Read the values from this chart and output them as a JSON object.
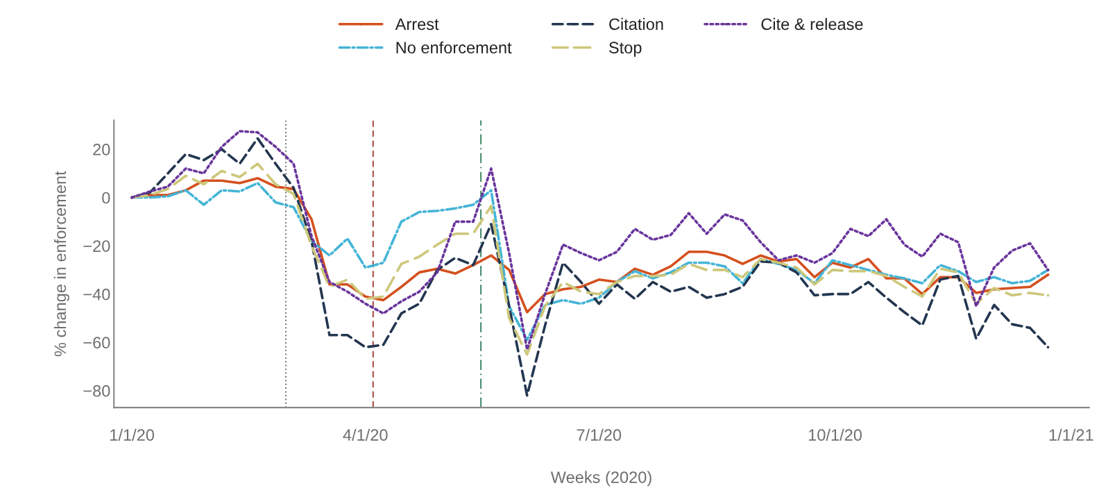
{
  "chart_data": {
    "type": "line",
    "xlabel": "Weeks (2020)",
    "ylabel": "% change in enforcement",
    "x": [
      "2020-01-01",
      "2020-01-08",
      "2020-01-15",
      "2020-01-22",
      "2020-01-29",
      "2020-02-05",
      "2020-02-12",
      "2020-02-19",
      "2020-02-26",
      "2020-03-04",
      "2020-03-11",
      "2020-03-18",
      "2020-03-25",
      "2020-04-01",
      "2020-04-08",
      "2020-04-15",
      "2020-04-22",
      "2020-04-29",
      "2020-05-06",
      "2020-05-13",
      "2020-05-20",
      "2020-05-27",
      "2020-06-03",
      "2020-06-10",
      "2020-06-17",
      "2020-06-24",
      "2020-07-01",
      "2020-07-08",
      "2020-07-15",
      "2020-07-22",
      "2020-07-29",
      "2020-08-05",
      "2020-08-12",
      "2020-08-19",
      "2020-08-26",
      "2020-09-02",
      "2020-09-09",
      "2020-09-16",
      "2020-09-23",
      "2020-09-30",
      "2020-10-07",
      "2020-10-14",
      "2020-10-21",
      "2020-10-28",
      "2020-11-04",
      "2020-11-11",
      "2020-11-18",
      "2020-11-25",
      "2020-12-02",
      "2020-12-09",
      "2020-12-16",
      "2020-12-23"
    ],
    "series": [
      {
        "name": "Arrest",
        "color": "#d4501e",
        "line_style": "solid",
        "values": [
          0,
          1,
          1,
          3,
          7,
          7,
          6,
          8,
          4.5,
          3.5,
          -9,
          -36,
          -36,
          -41,
          -42.5,
          -37,
          -31,
          -29.5,
          -31.5,
          -28,
          -24,
          -30,
          -47.5,
          -40,
          -38,
          -37,
          -34,
          -35,
          -29.5,
          -32,
          -28.5,
          -22.5,
          -22.5,
          -24,
          -27.5,
          -24,
          -26.5,
          -25.5,
          -33,
          -27,
          -29,
          -25.5,
          -33.5,
          -33.5,
          -40,
          -33,
          -33,
          -39.5,
          -38,
          -37.5,
          -37,
          -32
        ]
      },
      {
        "name": "No enforcement",
        "color": "#44b4d6",
        "line_style": "dashdot",
        "values": [
          0,
          0,
          0.5,
          3,
          -3,
          3,
          2.5,
          6,
          -2,
          -4,
          -18,
          -24,
          -17,
          -29,
          -27,
          -10,
          -6,
          -5.5,
          -4.5,
          -3,
          3,
          -45,
          -59,
          -44.5,
          -42.5,
          -44,
          -41.5,
          -35,
          -30.5,
          -33.5,
          -31,
          -27,
          -27,
          -28.5,
          -35.5,
          -25.5,
          -27.5,
          -30,
          -35.5,
          -26,
          -28,
          -30,
          -32,
          -33.5,
          -35.5,
          -28,
          -30.5,
          -35,
          -33,
          -35.5,
          -34.5,
          -30
        ]
      },
      {
        "name": "Citation",
        "color": "#233650",
        "line_style": "dashed",
        "values": [
          0,
          2,
          10,
          18,
          15.5,
          20,
          14,
          24.5,
          14,
          4,
          -18,
          -57,
          -57,
          -62,
          -61,
          -48,
          -44,
          -30,
          -25,
          -28,
          -11,
          -45,
          -82,
          -53,
          -27,
          -35,
          -44,
          -36,
          -42,
          -35,
          -39,
          -37,
          -41.5,
          -40,
          -37,
          -26.5,
          -27,
          -31,
          -40.5,
          -40,
          -40,
          -35,
          -41.5,
          -47.5,
          -53,
          -34,
          -32.5,
          -58.5,
          -44.5,
          -52.5,
          -54,
          -62
        ]
      },
      {
        "name": "Stop",
        "color": "#cdc77a",
        "line_style": "longdash",
        "values": [
          0,
          1,
          3.5,
          9,
          5.5,
          11,
          8.5,
          14,
          5.5,
          1.5,
          -20,
          -37,
          -34,
          -42,
          -41,
          -27.5,
          -24.5,
          -19.5,
          -15,
          -15,
          -3.5,
          -50,
          -65,
          -45,
          -35,
          -39,
          -40,
          -35,
          -32.5,
          -32.5,
          -32,
          -27.5,
          -30,
          -30,
          -33,
          -25.5,
          -27,
          -29,
          -36,
          -30,
          -30.5,
          -30.5,
          -32.5,
          -37,
          -41,
          -29.5,
          -31,
          -44,
          -37.5,
          -40.5,
          -39.5,
          -40.5
        ]
      },
      {
        "name": "Cite & release",
        "color": "#6a359c",
        "line_style": "dotted",
        "values": [
          0,
          2.5,
          4.5,
          12,
          10,
          21,
          27.5,
          27,
          21,
          14,
          -16,
          -35,
          -39,
          -44,
          -48,
          -43,
          -39,
          -31,
          -10,
          -10,
          12,
          -23,
          -63,
          -40,
          -19.5,
          -23,
          -26,
          -22.5,
          -13,
          -17.5,
          -15.5,
          -6.5,
          -15,
          -7,
          -9.5,
          -18.5,
          -26,
          -24,
          -27,
          -23,
          -13,
          -16,
          -9,
          -19.5,
          -24.5,
          -15,
          -18.5,
          -45,
          -29,
          -22,
          -19,
          -30
        ]
      }
    ],
    "ref_lines": [
      {
        "axis": "x",
        "value": "2020-03-01",
        "color": "#555555",
        "line_style": "dotted"
      },
      {
        "axis": "x",
        "value": "2020-04-04",
        "color": "#a0342d",
        "line_style": "dashed"
      },
      {
        "axis": "x",
        "value": "2020-05-16",
        "color": "#2e7d5a",
        "line_style": "dashdot"
      }
    ],
    "xlim": [
      "2019-12-25",
      "2021-01-08"
    ],
    "xticks": [
      {
        "value": "2020-01-01",
        "label": "1/1/20"
      },
      {
        "value": "2020-04-01",
        "label": "4/1/20"
      },
      {
        "value": "2020-07-01",
        "label": "7/1/20"
      },
      {
        "value": "2020-10-01",
        "label": "10/1/20"
      },
      {
        "value": "2021-01-01",
        "label": "1/1/21"
      }
    ],
    "ylim": [
      -87,
      32
    ],
    "yticks": [
      {
        "value": 20,
        "label": "20"
      },
      {
        "value": 0,
        "label": "0"
      },
      {
        "value": -20,
        "label": "−20"
      },
      {
        "value": -40,
        "label": "−40"
      },
      {
        "value": -60,
        "label": "−60"
      },
      {
        "value": -80,
        "label": "−80"
      }
    ],
    "grid": false,
    "legend": "top"
  }
}
